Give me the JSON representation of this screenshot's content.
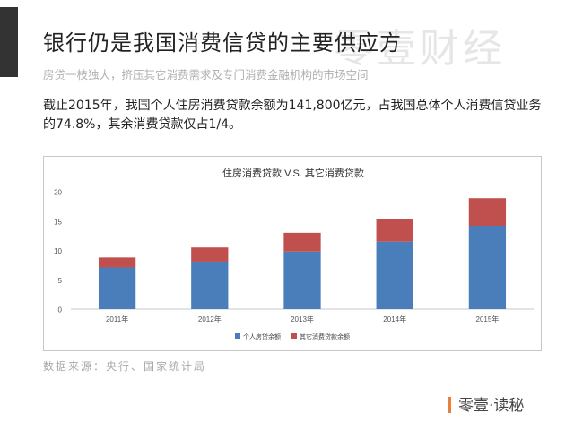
{
  "slide": {
    "title": "银行仍是我国消费信贷的主要供应方",
    "watermark": "零壹财经",
    "subtitle": "房贷一枝独大，挤压其它消费需求及专门消费金融机构的市场空间",
    "body": "截止2015年，我国个人住房消费贷款余额为141,800亿元，占我国总体个人消费信贷业务的74.8%，其余消费贷款仅占1/4。",
    "source": "数据来源：央行、国家统计局",
    "brand": "零壹·读秘"
  },
  "chart_data": {
    "type": "bar",
    "stacked": true,
    "title": "住房消费贷款 V.S. 其它消费贷款",
    "categories": [
      "2011年",
      "2012年",
      "2013年",
      "2014年",
      "2015年"
    ],
    "series": [
      {
        "name": "个人房贷余额",
        "color": "#4a7ebb",
        "values": [
          7.1,
          8.1,
          9.8,
          11.5,
          14.2
        ]
      },
      {
        "name": "其它消费贷款余额",
        "color": "#c0504d",
        "values": [
          1.7,
          2.4,
          3.2,
          3.8,
          4.7
        ]
      }
    ],
    "y_ticks": [
      "0",
      "5",
      "10",
      "15",
      "20"
    ],
    "ylim": [
      0,
      20
    ],
    "grid": false,
    "legend_position": "bottom"
  }
}
